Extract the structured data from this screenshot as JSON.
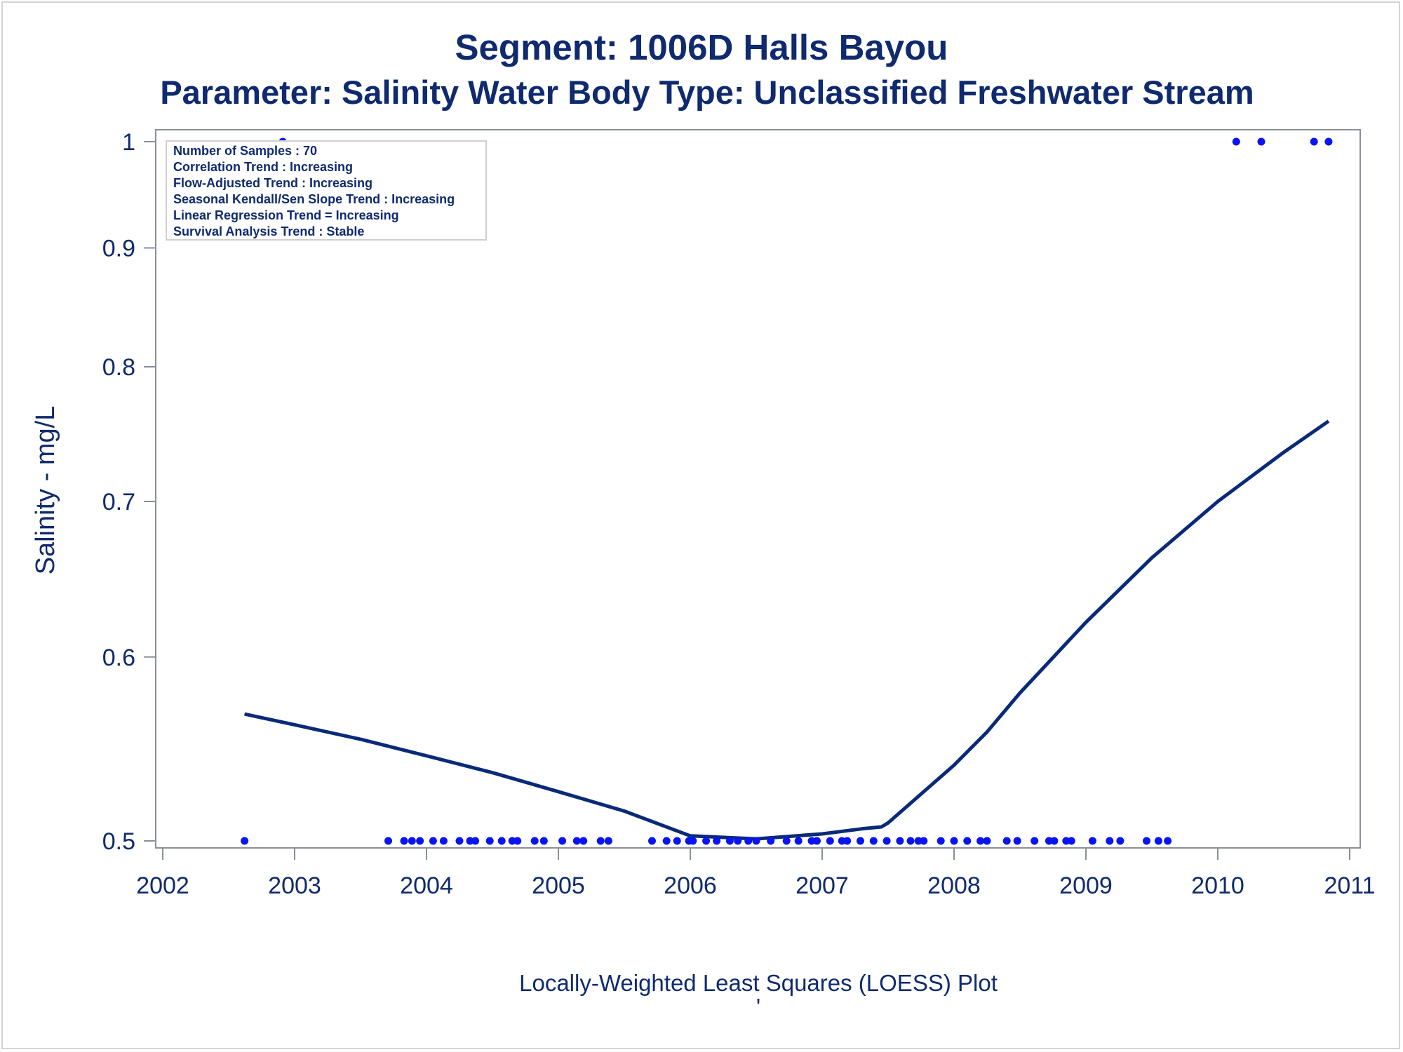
{
  "colors": {
    "title": "#0f2a6e",
    "axis": "#8a8f9c",
    "line": "#0a2a78",
    "marker": "#0a14f0",
    "legend_border": "#cfcfcf"
  },
  "chart_data": {
    "type": "scatter",
    "title": "Segment: 1006D  Halls Bayou",
    "subtitle": "Parameter: Salinity   Water Body Type: Unclassified Freshwater Stream",
    "xlabel": "Locally-Weighted Least Squares (LOESS) Plot",
    "footnote_mark": "'",
    "ylabel": "Salinity - mg/L",
    "yscale": "log",
    "xlim": [
      2002.0,
      2011.0
    ],
    "ylim": [
      0.5,
      1.0
    ],
    "x_ticks": [
      "2002",
      "2003",
      "2004",
      "2005",
      "2006",
      "2007",
      "2008",
      "2009",
      "2010",
      "2011"
    ],
    "y_ticks": [
      "0.5",
      "0.6",
      "0.7",
      "0.8",
      "0.9",
      "1"
    ],
    "grid": false,
    "legend_placement": "top-left",
    "stats_box": [
      "Number of Samples : 70",
      "Correlation Trend : Increasing",
      "Flow-Adjusted Trend : Increasing",
      "Seasonal Kendall/Sen Slope Trend : Increasing",
      "Linear Regression Trend = Increasing",
      "Survival Analysis Trend : Stable"
    ],
    "series": [
      {
        "kind": "points",
        "x": [
          2002.62,
          2002.91,
          2003.71,
          2003.83,
          2003.89,
          2003.95,
          2004.05,
          2004.13,
          2004.25,
          2004.33,
          2004.37,
          2004.48,
          2004.57,
          2004.65,
          2004.69,
          2004.82,
          2004.89,
          2005.03,
          2005.14,
          2005.19,
          2005.32,
          2005.38,
          2005.71,
          2005.82,
          2005.9,
          2005.99,
          2006.02,
          2006.12,
          2006.2,
          2006.3,
          2006.36,
          2006.44,
          2006.5,
          2006.61,
          2006.73,
          2006.82,
          2006.92,
          2006.96,
          2007.06,
          2007.15,
          2007.19,
          2007.29,
          2007.39,
          2007.49,
          2007.59,
          2007.67,
          2007.73,
          2007.77,
          2007.9,
          2008.0,
          2008.1,
          2008.2,
          2008.25,
          2008.4,
          2008.48,
          2008.61,
          2008.72,
          2008.76,
          2008.85,
          2008.89,
          2009.05,
          2009.18,
          2009.26,
          2009.46,
          2009.55,
          2009.62,
          2010.14,
          2010.33,
          2010.73,
          2010.84
        ],
        "y": [
          0.5,
          1.0,
          0.5,
          0.5,
          0.5,
          0.5,
          0.5,
          0.5,
          0.5,
          0.5,
          0.5,
          0.5,
          0.5,
          0.5,
          0.5,
          0.5,
          0.5,
          0.5,
          0.5,
          0.5,
          0.5,
          0.5,
          0.5,
          0.5,
          0.5,
          0.5,
          0.5,
          0.5,
          0.5,
          0.5,
          0.5,
          0.5,
          0.5,
          0.5,
          0.5,
          0.5,
          0.5,
          0.5,
          0.5,
          0.5,
          0.5,
          0.5,
          0.5,
          0.5,
          0.5,
          0.5,
          0.5,
          0.5,
          0.5,
          0.5,
          0.5,
          0.5,
          0.5,
          0.5,
          0.5,
          0.5,
          0.5,
          0.5,
          0.5,
          0.5,
          0.5,
          0.5,
          0.5,
          0.5,
          0.5,
          0.5,
          1.0,
          1.0,
          1.0,
          1.0
        ]
      },
      {
        "kind": "loess",
        "x": [
          2002.62,
          2003.0,
          2003.5,
          2004.0,
          2004.5,
          2005.0,
          2005.5,
          2006.0,
          2006.5,
          2007.0,
          2007.3,
          2007.45,
          2007.5,
          2008.0,
          2008.25,
          2008.5,
          2009.0,
          2009.5,
          2010.0,
          2010.5,
          2010.84
        ],
        "y": [
          0.567,
          0.561,
          0.553,
          0.544,
          0.535,
          0.525,
          0.515,
          0.5025,
          0.501,
          0.5035,
          0.506,
          0.507,
          0.509,
          0.539,
          0.557,
          0.579,
          0.621,
          0.662,
          0.7,
          0.735,
          0.758
        ]
      }
    ]
  }
}
